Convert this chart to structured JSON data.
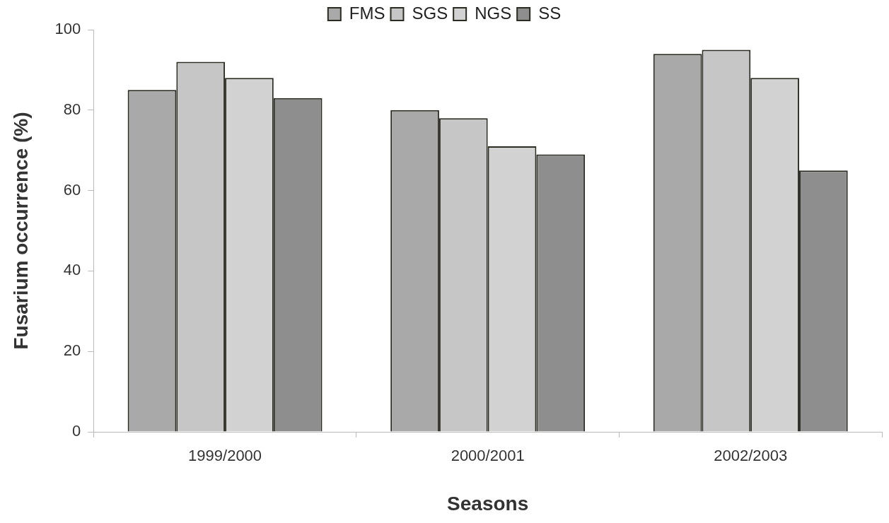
{
  "chart_data": {
    "type": "bar",
    "xlabel": "Seasons",
    "ylabel": "Fusarium occurrence (%)",
    "categories": [
      "1999/2000",
      "2000/2001",
      "2002/2003"
    ],
    "series": [
      {
        "name": "FMS",
        "color": "#a9a9a9",
        "values": [
          85,
          80,
          94
        ]
      },
      {
        "name": "SGS",
        "color": "#c6c6c6",
        "values": [
          92,
          78,
          95
        ]
      },
      {
        "name": "NGS",
        "color": "#d2d2d2",
        "values": [
          88,
          71,
          88
        ]
      },
      {
        "name": "SS",
        "color": "#8e8e8e",
        "values": [
          83,
          69,
          65
        ]
      }
    ],
    "ylim": [
      0,
      100
    ],
    "yticks": [
      0,
      20,
      40,
      60,
      80,
      100
    ],
    "grid": false,
    "legend": "top"
  }
}
